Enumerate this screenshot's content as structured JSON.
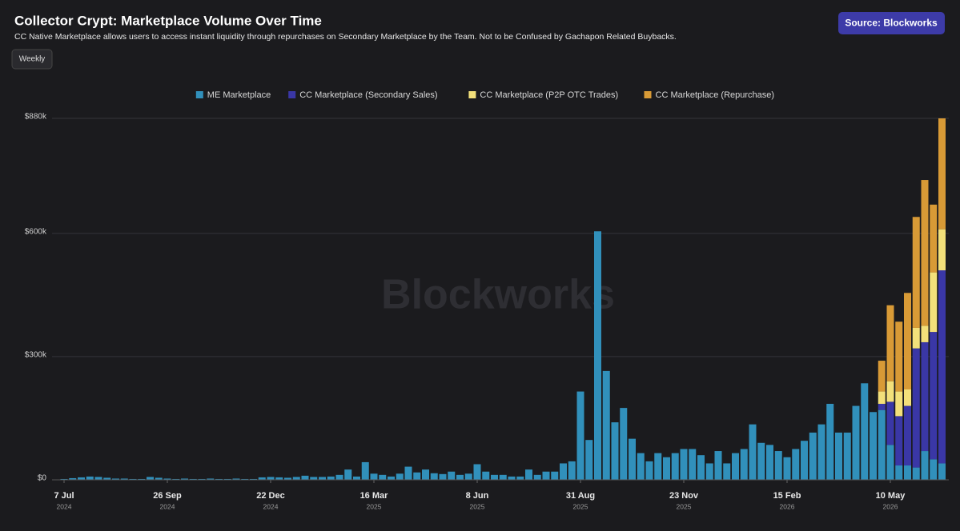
{
  "chart_data": {
    "type": "stacked-bar",
    "title": "Collector Crypt: Marketplace Volume Over Time",
    "subtitle": "CC Native Marketplace allows users to access instant liquidity through repurchases on Secondary Marketplace by the Team. Not to be Confused by Gachapon Related Buybacks.",
    "source": "Source: Blockworks",
    "interval": "Weekly",
    "watermark": "Blockworks",
    "categories": [
      "7 Jul",
      null,
      null,
      null,
      null,
      null,
      null,
      null,
      null,
      null,
      null,
      null,
      "26 Sep",
      null,
      null,
      null,
      null,
      null,
      null,
      null,
      null,
      null,
      null,
      null,
      "22 Dec",
      null,
      null,
      null,
      null,
      null,
      null,
      null,
      null,
      null,
      null,
      null,
      "16 Mar",
      null,
      null,
      null,
      null,
      null,
      null,
      null,
      null,
      null,
      null,
      null,
      "8 Jun",
      null,
      null,
      null,
      null,
      null,
      null,
      null,
      null,
      null,
      null,
      null,
      "31 Aug",
      null,
      null,
      null,
      null,
      null,
      null,
      null,
      null,
      null,
      null,
      null,
      "23 Nov",
      null,
      null,
      null,
      null,
      null,
      null,
      null,
      null,
      null,
      null,
      null,
      "15 Feb",
      null,
      null,
      null,
      null,
      null,
      null,
      null,
      null,
      null,
      null,
      null,
      "10 May",
      null,
      null,
      null,
      null,
      null,
      null
    ],
    "category_years": [
      "2024",
      null,
      null,
      null,
      null,
      null,
      null,
      null,
      null,
      null,
      null,
      null,
      "2024",
      null,
      null,
      null,
      null,
      null,
      null,
      null,
      null,
      null,
      null,
      null,
      "2024",
      null,
      null,
      null,
      null,
      null,
      null,
      null,
      null,
      null,
      null,
      null,
      "2025",
      null,
      null,
      null,
      null,
      null,
      null,
      null,
      null,
      null,
      null,
      null,
      "2025",
      null,
      null,
      null,
      null,
      null,
      null,
      null,
      null,
      null,
      null,
      null,
      "2025",
      null,
      null,
      null,
      null,
      null,
      null,
      null,
      null,
      null,
      null,
      null,
      "2025",
      null,
      null,
      null,
      null,
      null,
      null,
      null,
      null,
      null,
      null,
      null,
      "2026",
      null,
      null,
      null,
      null,
      null,
      null,
      null,
      null,
      null,
      null,
      null,
      "2026",
      null,
      null,
      null,
      null,
      null,
      null
    ],
    "series": [
      {
        "name": "ME Marketplace",
        "color": "#3190bb",
        "values": [
          2000,
          4000,
          6000,
          8000,
          7000,
          5000,
          3000,
          3000,
          2000,
          2000,
          7000,
          5000,
          3000,
          2000,
          3000,
          2000,
          2000,
          3000,
          2000,
          2000,
          3000,
          2000,
          2000,
          6000,
          7000,
          6000,
          5000,
          7000,
          10000,
          7000,
          7000,
          8000,
          12000,
          25000,
          8000,
          43000,
          15000,
          12000,
          8000,
          15000,
          32000,
          18000,
          25000,
          16000,
          14000,
          20000,
          12000,
          15000,
          38000,
          20000,
          12000,
          12000,
          8000,
          8000,
          25000,
          12000,
          20000,
          20000,
          40000,
          45000,
          215000,
          97000,
          605000,
          265000,
          140000,
          175000,
          100000,
          65000,
          45000,
          65000,
          55000,
          65000,
          75000,
          75000,
          60000,
          40000,
          70000,
          40000,
          65000,
          75000,
          135000,
          90000,
          85000,
          70000,
          55000,
          75000,
          95000,
          115000,
          135000,
          185000,
          115000,
          115000,
          180000,
          235000,
          165000,
          170000,
          85000,
          35000,
          35000,
          30000,
          70000,
          50000,
          40000
        ]
      },
      {
        "name": "CC Marketplace (Secondary Sales)",
        "color": "#3a37a6",
        "values": [
          null,
          null,
          null,
          null,
          null,
          null,
          null,
          null,
          null,
          null,
          null,
          null,
          null,
          null,
          null,
          null,
          null,
          null,
          null,
          null,
          null,
          null,
          null,
          null,
          null,
          null,
          null,
          null,
          null,
          null,
          null,
          null,
          null,
          null,
          null,
          null,
          null,
          null,
          null,
          null,
          null,
          null,
          null,
          null,
          null,
          null,
          null,
          null,
          null,
          null,
          null,
          null,
          null,
          null,
          null,
          null,
          null,
          null,
          null,
          null,
          null,
          null,
          null,
          null,
          null,
          null,
          null,
          null,
          null,
          null,
          null,
          null,
          null,
          null,
          null,
          null,
          null,
          null,
          null,
          null,
          null,
          null,
          null,
          null,
          null,
          null,
          null,
          null,
          null,
          null,
          null,
          null,
          null,
          null,
          null,
          15000,
          105000,
          120000,
          145000,
          290000,
          265000,
          310000,
          470000
        ]
      },
      {
        "name": "CC Marketplace (P2P OTC Trades)",
        "color": "#f3e07a",
        "values": [
          null,
          null,
          null,
          null,
          null,
          null,
          null,
          null,
          null,
          null,
          null,
          null,
          null,
          null,
          null,
          null,
          null,
          null,
          null,
          null,
          null,
          null,
          null,
          null,
          null,
          null,
          null,
          null,
          null,
          null,
          null,
          null,
          null,
          null,
          null,
          null,
          null,
          null,
          null,
          null,
          null,
          null,
          null,
          null,
          null,
          null,
          null,
          null,
          null,
          null,
          null,
          null,
          null,
          null,
          null,
          null,
          null,
          null,
          null,
          null,
          null,
          null,
          null,
          null,
          null,
          null,
          null,
          null,
          null,
          null,
          null,
          null,
          null,
          null,
          null,
          null,
          null,
          null,
          null,
          null,
          null,
          null,
          null,
          null,
          null,
          null,
          null,
          null,
          null,
          null,
          null,
          null,
          null,
          null,
          null,
          30000,
          50000,
          60000,
          40000,
          50000,
          40000,
          145000,
          100000
        ]
      },
      {
        "name": "CC Marketplace (Repurchase)",
        "color": "#d89a36",
        "values": [
          null,
          null,
          null,
          null,
          null,
          null,
          null,
          null,
          null,
          null,
          null,
          null,
          null,
          null,
          null,
          null,
          null,
          null,
          null,
          null,
          null,
          null,
          null,
          null,
          null,
          null,
          null,
          null,
          null,
          null,
          null,
          null,
          null,
          null,
          null,
          null,
          null,
          null,
          null,
          null,
          null,
          null,
          null,
          null,
          null,
          null,
          null,
          null,
          null,
          null,
          null,
          null,
          null,
          null,
          null,
          null,
          null,
          null,
          null,
          null,
          null,
          null,
          null,
          null,
          null,
          null,
          null,
          null,
          null,
          null,
          null,
          null,
          null,
          null,
          null,
          null,
          null,
          null,
          null,
          null,
          null,
          null,
          null,
          null,
          null,
          null,
          null,
          null,
          null,
          null,
          null,
          null,
          null,
          null,
          null,
          75000,
          185000,
          170000,
          235000,
          270000,
          355000,
          165000,
          270000
        ]
      }
    ],
    "ylim": [
      0,
      880000
    ],
    "yticks": [
      {
        "value": 0,
        "label": "$0"
      },
      {
        "value": 300000,
        "label": "$300k"
      },
      {
        "value": 600000,
        "label": "$600k"
      },
      {
        "value": 880000,
        "label": "$880k"
      }
    ],
    "grid": true,
    "legend": "top"
  }
}
